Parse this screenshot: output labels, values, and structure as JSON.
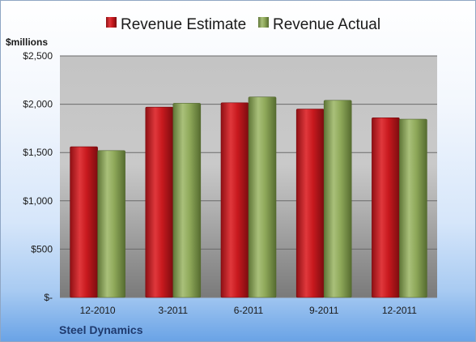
{
  "chart_data": {
    "type": "bar",
    "categories": [
      "12-2010",
      "3-2011",
      "6-2011",
      "9-2011",
      "12-2011"
    ],
    "series": [
      {
        "name": "Revenue Estimate",
        "color": "#c0191e",
        "values": [
          1560,
          1970,
          2015,
          1950,
          1860
        ]
      },
      {
        "name": "Revenue Actual",
        "color": "#8fa95a",
        "values": [
          1520,
          2010,
          2075,
          2040,
          1845
        ]
      }
    ],
    "unit_label": "$millions",
    "ylim": [
      0,
      2500
    ],
    "yticks": [
      {
        "value": 0,
        "label": "$-"
      },
      {
        "value": 500,
        "label": "$500"
      },
      {
        "value": 1000,
        "label": "$1,000"
      },
      {
        "value": 1500,
        "label": "$1,500"
      },
      {
        "value": 2000,
        "label": "$2,000"
      },
      {
        "value": 2500,
        "label": "$2,500"
      }
    ],
    "grid": true,
    "legend_position": "top"
  },
  "footer": {
    "company": "Steel Dynamics"
  }
}
